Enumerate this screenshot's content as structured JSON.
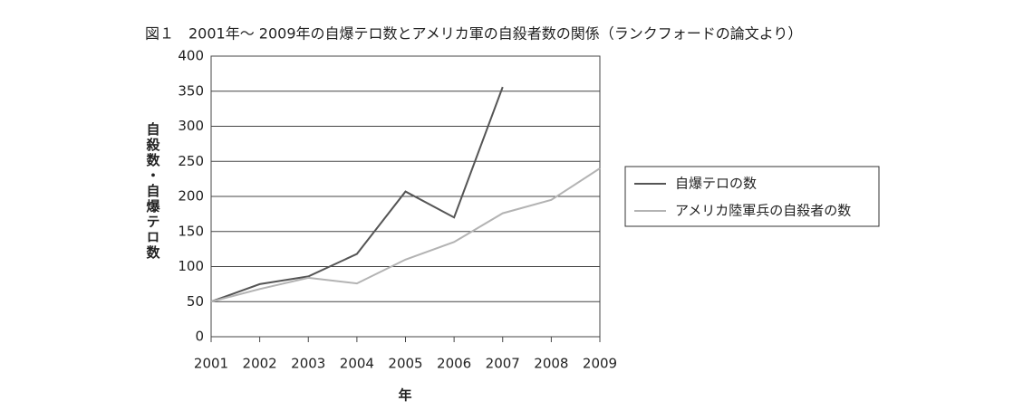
{
  "chart_data": {
    "type": "line",
    "title": "図１　2001年〜 2009年の自爆テロ数とアメリカ軍の自殺者数の関係（ランクフォードの論文より）",
    "x_label": "年",
    "y_label": "自殺数・自爆テロ数",
    "x": [
      2001,
      2002,
      2003,
      2004,
      2005,
      2006,
      2007,
      2008,
      2009
    ],
    "xlim": [
      2001,
      2009
    ],
    "xticks": [
      2001,
      2002,
      2003,
      2004,
      2005,
      2006,
      2007,
      2008,
      2009
    ],
    "ylim": [
      0,
      400
    ],
    "yticks": [
      0,
      50,
      100,
      150,
      200,
      250,
      300,
      350,
      400
    ],
    "grid": true,
    "legend": "right",
    "series": [
      {
        "name": "自爆テロの数",
        "color": "#555555",
        "values": [
          50,
          75,
          86,
          118,
          207,
          170,
          356,
          null,
          null
        ]
      },
      {
        "name": "アメリカ陸軍兵の自殺者の数",
        "color": "#b3b3b3",
        "values": [
          50,
          68,
          84,
          76,
          110,
          135,
          176,
          195,
          240
        ]
      }
    ]
  }
}
